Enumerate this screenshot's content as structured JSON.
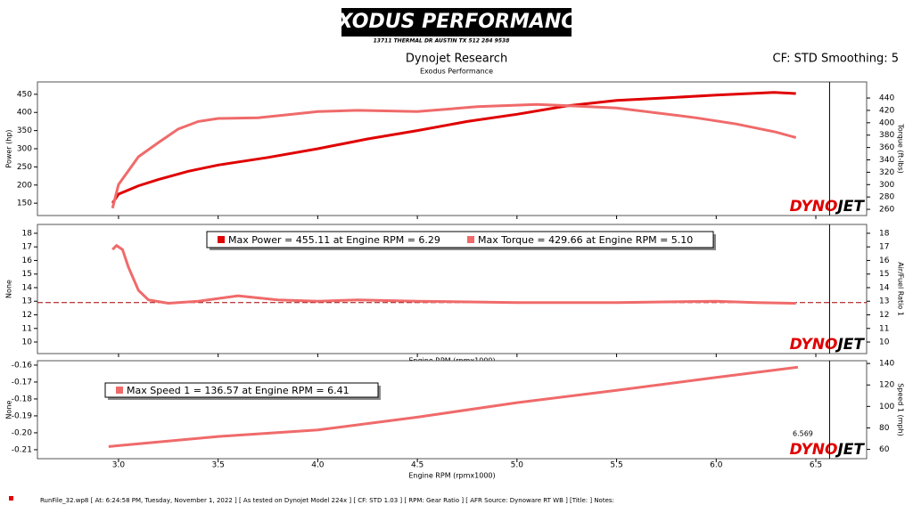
{
  "header": {
    "logo": "EXODUS PERFORMANCE",
    "address": "13711 THERMAL DR AUSTIN TX 512 284 9538",
    "title": "Dynojet Research",
    "subtitle": "Exodus Performance",
    "settings": "CF: STD Smoothing: 5"
  },
  "watermark": [
    "DYNO",
    "JET"
  ],
  "chart_data": [
    {
      "type": "line",
      "ylabel": "Power (hp)",
      "y2label": "Torque (ft-lbs)",
      "ylim": [
        116,
        484
      ],
      "yticks": [
        150,
        200,
        250,
        300,
        350,
        400,
        450
      ],
      "y2lim": [
        250,
        466
      ],
      "y2ticks": [
        260,
        280,
        300,
        320,
        340,
        360,
        380,
        400,
        420,
        440
      ],
      "series": [
        {
          "name": "Power",
          "color": "#e00000",
          "x": [
            2.97,
            3.0,
            3.1,
            3.2,
            3.35,
            3.5,
            3.75,
            4.0,
            4.25,
            4.5,
            4.75,
            5.0,
            5.25,
            5.5,
            5.75,
            6.0,
            6.29,
            6.4
          ],
          "values": [
            150,
            175,
            198,
            215,
            238,
            255,
            276,
            300,
            327,
            350,
            375,
            395,
            418,
            433,
            440,
            448,
            455.11,
            452
          ]
        },
        {
          "name": "Torque",
          "axis": "y2",
          "color": "#f06a6a",
          "x": [
            2.97,
            3.0,
            3.1,
            3.2,
            3.3,
            3.4,
            3.5,
            3.7,
            4.0,
            4.2,
            4.5,
            4.8,
            5.1,
            5.3,
            5.5,
            5.7,
            5.9,
            6.1,
            6.3,
            6.4
          ],
          "values": [
            262,
            300,
            345,
            368,
            390,
            402,
            407,
            408,
            418,
            420,
            418,
            426,
            429.66,
            427,
            424,
            416,
            408,
            398,
            385,
            376
          ]
        }
      ]
    },
    {
      "type": "line",
      "ylabel": "None",
      "y2label": "Air/Fuel Ratio 1",
      "ylim": [
        9.15,
        18.65
      ],
      "yticks": [
        10,
        11,
        12,
        13,
        14,
        15,
        16,
        17,
        18
      ],
      "y2lim": [
        9.15,
        18.65
      ],
      "y2ticks": [
        10,
        11,
        12,
        13,
        14,
        15,
        16,
        17,
        18
      ],
      "xlabel": "Engine RPM (rpmx1000)",
      "reference_line": 12.9,
      "series": [
        {
          "name": "Air/Fuel Ratio 1",
          "axis": "y2",
          "color": "#f06a6a",
          "x": [
            2.97,
            2.99,
            3.02,
            3.05,
            3.1,
            3.15,
            3.25,
            3.4,
            3.6,
            3.8,
            4.0,
            4.2,
            4.5,
            5.0,
            5.5,
            6.0,
            6.2,
            6.4
          ],
          "values": [
            16.8,
            17.1,
            16.8,
            15.5,
            13.8,
            13.1,
            12.85,
            13.0,
            13.4,
            13.1,
            13.0,
            13.1,
            13.0,
            12.9,
            12.9,
            13.0,
            12.9,
            12.85
          ]
        }
      ],
      "annotations": [
        {
          "text": "Max Power = 455.11 at Engine RPM = 6.29",
          "color": "#e00000"
        },
        {
          "text": "Max Torque = 429.66 at Engine RPM = 5.10",
          "color": "#f06a6a"
        }
      ]
    },
    {
      "type": "line",
      "ylabel": "None",
      "y2label": "Speed 1 (mph)",
      "ylim": [
        -0.2153,
        -0.1574
      ],
      "yticks": [
        -0.16,
        -0.17,
        -0.18,
        -0.19,
        {
          "value": -0.2,
          "label": "-0.20"
        },
        -0.21
      ],
      "y2lim": [
        51.3,
        142.6
      ],
      "y2ticks": [
        60,
        80,
        100,
        120,
        140
      ],
      "xlim": [
        2.593,
        6.755
      ],
      "xticks": [
        {
          "value": 3,
          "label": "3.0"
        },
        3.5,
        {
          "value": 4,
          "label": "4.0"
        },
        4.5,
        {
          "value": 5,
          "label": "5.0"
        },
        5.5,
        {
          "value": 6,
          "label": "6.0"
        },
        6.5
      ],
      "xlabel": "Engine RPM (rpmx1000)",
      "cursor": 6.569,
      "series": [
        {
          "name": "Speed 1",
          "axis": "y2",
          "color": "#f06a6a",
          "x": [
            2.95,
            3.5,
            4.0,
            4.5,
            5.0,
            5.5,
            6.0,
            6.41
          ],
          "values": [
            62.6,
            72,
            78,
            90,
            103.5,
            115,
            127,
            136.57
          ]
        }
      ],
      "annotations": [
        {
          "text": "Max Speed 1 = 136.57 at Engine RPM = 6.41",
          "color": "#f06a6a"
        }
      ]
    }
  ],
  "footer": "RunFile_32.wp8 [ At: 6:24:58 PM, Tuesday, November 1, 2022 ] [ As tested on Dynojet Model 224x ] [ CF: STD 1.03 ] [ RPM: Gear Ratio ] [ AFR Source: Dynoware RT WB ] [Title: ]  Notes:"
}
